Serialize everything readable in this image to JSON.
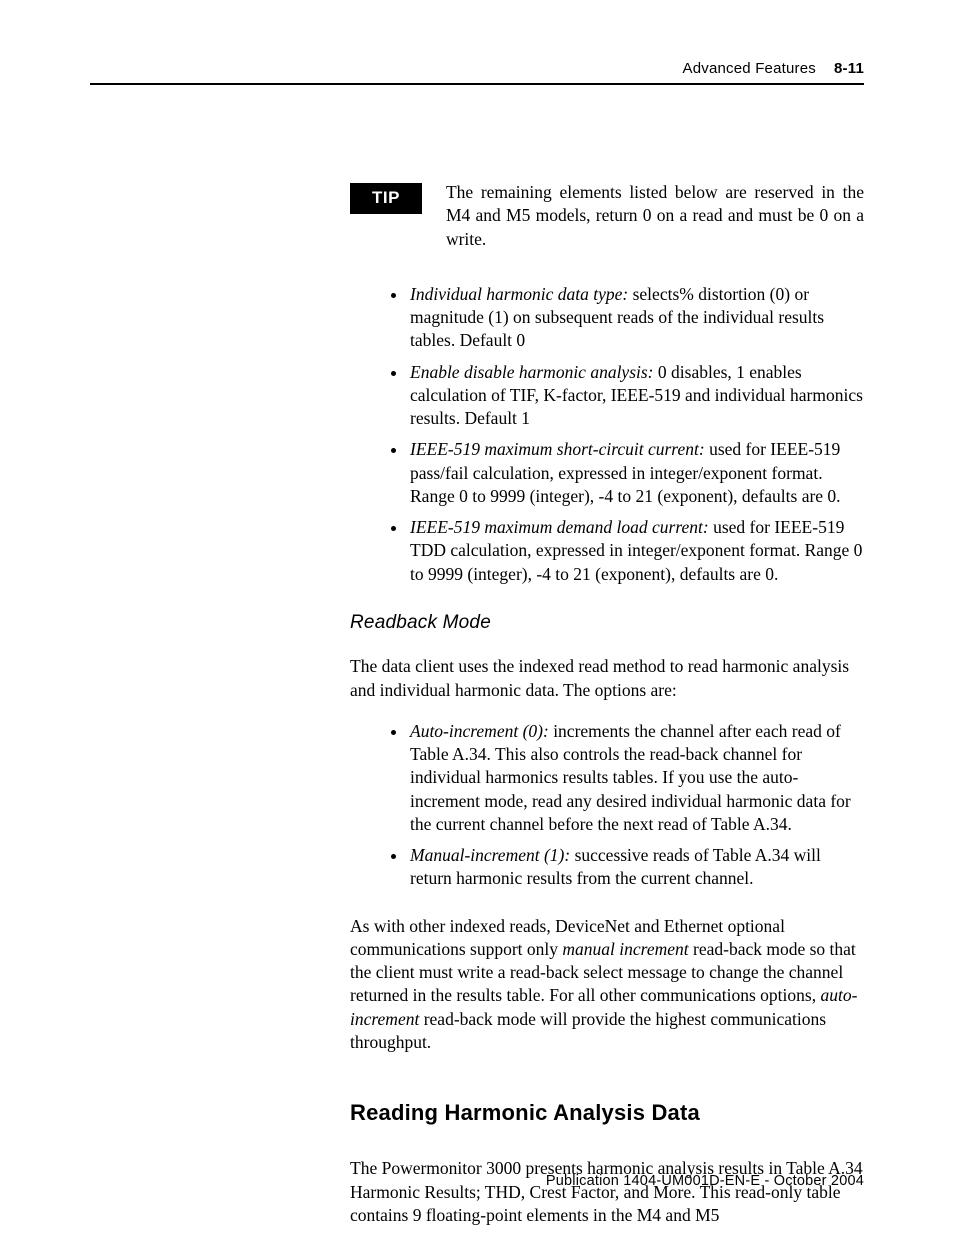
{
  "header": {
    "title": "Advanced Features",
    "page_number": "8-11"
  },
  "tip": {
    "label": "TIP",
    "text": "The remaining elements listed below are reserved in the M4 and M5 models, return 0 on a read and must be 0 on a write."
  },
  "bullets1": [
    {
      "lead": "Individual harmonic data type:",
      "rest": " selects% distortion (0) or magnitude (1) on subsequent reads of the individual results tables. Default 0"
    },
    {
      "lead": "Enable disable harmonic analysis:",
      "rest": " 0 disables, 1 enables calculation of TIF, K-factor, IEEE-519 and individual harmonics results. Default 1"
    },
    {
      "lead": "IEEE-519 maximum short-circuit current:",
      "rest": " used for IEEE-519 pass/fail calculation, expressed in integer/exponent format. Range 0 to 9999 (integer), -4 to 21 (exponent), defaults are 0."
    },
    {
      "lead": "IEEE-519 maximum demand load current:",
      "rest": " used for IEEE-519 TDD calculation, expressed in integer/exponent format. Range 0 to 9999 (integer), -4 to 21 (exponent), defaults are 0."
    }
  ],
  "readback": {
    "heading": "Readback Mode",
    "intro": "The data client uses the indexed read method to read harmonic analysis and individual harmonic data. The options are:",
    "items": [
      {
        "lead": "Auto-increment (0):",
        "rest": " increments the channel after each read of Table A.34. This also controls the read-back channel for individual harmonics results tables. If you use the auto-increment mode, read any desired individual harmonic data for the current channel before the next read of Table A.34."
      },
      {
        "lead": "Manual-increment (1):",
        "rest": " successive reads of Table A.34 will return harmonic results from the current channel."
      }
    ],
    "after_pre": "As with other indexed reads, DeviceNet and Ethernet optional communications support only ",
    "after_it1": "manual increment",
    "after_mid": " read-back mode so that the client must write a read-back select message to change the channel returned in the results table. For all other communications options, ",
    "after_it2": "auto-increment",
    "after_post": " read-back mode will provide the highest communications throughput."
  },
  "reading": {
    "heading": "Reading Harmonic Analysis Data",
    "para": "The Powermonitor 3000 presents harmonic analysis results in Table A.34 Harmonic Results; THD, Crest Factor, and More. This read-only table contains 9 floating-point elements in the M4 and M5"
  },
  "footer": "Publication 1404-UM001D-EN-E - October 2004"
}
